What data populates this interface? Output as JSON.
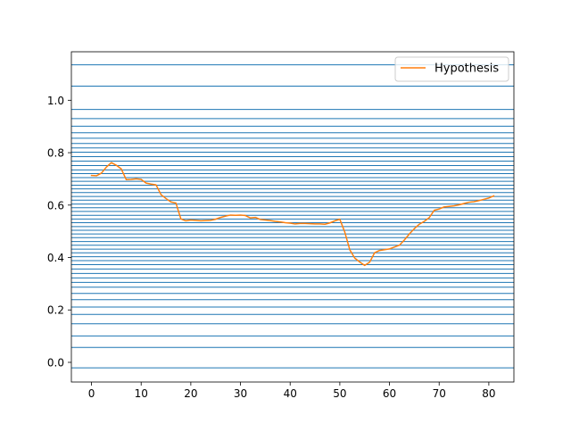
{
  "chart_data": {
    "type": "line",
    "title": "",
    "xlabel": "",
    "ylabel": "",
    "xlim": [
      -4.05,
      85.05
    ],
    "ylim": [
      -0.075,
      1.185
    ],
    "xticks": [
      0,
      10,
      20,
      30,
      40,
      50,
      60,
      70,
      80
    ],
    "xtick_labels": [
      "0",
      "10",
      "20",
      "30",
      "40",
      "50",
      "60",
      "70",
      "80"
    ],
    "yticks": [
      0.0,
      0.2,
      0.4,
      0.6,
      0.8,
      1.0
    ],
    "ytick_labels": [
      "0.0",
      "0.2",
      "0.4",
      "0.6",
      "0.8",
      "1.0"
    ],
    "grid": false,
    "legend": {
      "position": "upper right",
      "entries": [
        "Hypothesis"
      ]
    },
    "hlines": {
      "color": "#1f77b4",
      "y": [
        -0.021,
        0.057,
        0.101,
        0.147,
        0.183,
        0.211,
        0.239,
        0.263,
        0.287,
        0.305,
        0.322,
        0.339,
        0.356,
        0.373,
        0.388,
        0.403,
        0.418,
        0.432,
        0.447,
        0.461,
        0.476,
        0.49,
        0.504,
        0.518,
        0.533,
        0.547,
        0.561,
        0.576,
        0.59,
        0.604,
        0.619,
        0.633,
        0.648,
        0.662,
        0.676,
        0.691,
        0.705,
        0.72,
        0.734,
        0.751,
        0.768,
        0.785,
        0.802,
        0.818,
        0.835,
        0.855,
        0.876,
        0.901,
        0.93,
        0.965,
        1.054,
        1.135
      ]
    },
    "series": [
      {
        "name": "Hypothesis",
        "color": "#ff7f0e",
        "x": [
          0,
          1,
          2,
          3,
          4,
          5,
          6,
          7,
          8,
          9,
          10,
          11,
          12,
          13,
          14,
          15,
          16,
          17,
          18,
          19,
          20,
          21,
          22,
          23,
          24,
          25,
          26,
          27,
          28,
          29,
          30,
          31,
          32,
          33,
          34,
          35,
          36,
          37,
          38,
          39,
          40,
          41,
          42,
          43,
          44,
          45,
          46,
          47,
          48,
          49,
          50,
          51,
          52,
          53,
          54,
          55,
          56,
          57,
          58,
          59,
          60,
          61,
          62,
          63,
          64,
          65,
          66,
          67,
          68,
          69,
          70,
          71,
          72,
          73,
          74,
          75,
          76,
          77,
          78,
          79,
          80,
          81
        ],
        "y": [
          0.713,
          0.712,
          0.722,
          0.745,
          0.762,
          0.752,
          0.738,
          0.697,
          0.698,
          0.7,
          0.698,
          0.684,
          0.68,
          0.677,
          0.64,
          0.625,
          0.612,
          0.608,
          0.547,
          0.54,
          0.543,
          0.542,
          0.54,
          0.541,
          0.542,
          0.546,
          0.553,
          0.558,
          0.562,
          0.561,
          0.562,
          0.56,
          0.551,
          0.553,
          0.545,
          0.543,
          0.541,
          0.538,
          0.536,
          0.533,
          0.531,
          0.528,
          0.53,
          0.53,
          0.529,
          0.528,
          0.528,
          0.527,
          0.532,
          0.54,
          0.546,
          0.497,
          0.43,
          0.398,
          0.383,
          0.37,
          0.382,
          0.418,
          0.427,
          0.43,
          0.433,
          0.44,
          0.447,
          0.467,
          0.49,
          0.51,
          0.527,
          0.538,
          0.552,
          0.58,
          0.585,
          0.593,
          0.595,
          0.597,
          0.601,
          0.606,
          0.611,
          0.613,
          0.617,
          0.622,
          0.627,
          0.635
        ]
      }
    ]
  }
}
